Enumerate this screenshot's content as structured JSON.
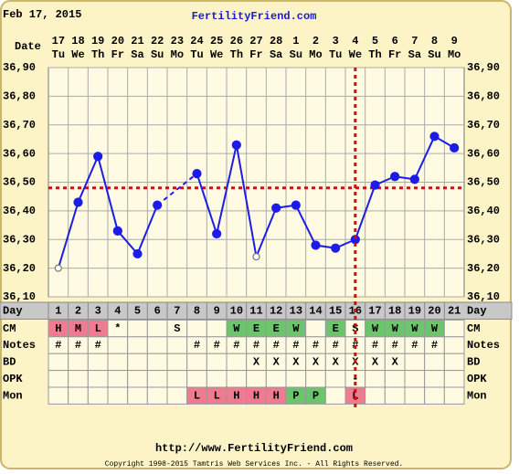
{
  "header": {
    "date": "Feb 17, 2015",
    "site": "FertilityFriend.com"
  },
  "chart_data": {
    "type": "line",
    "date_label": "Date",
    "dates": [
      17,
      18,
      19,
      20,
      21,
      22,
      23,
      24,
      25,
      26,
      27,
      28,
      1,
      2,
      3,
      4,
      5,
      6,
      7,
      8,
      9
    ],
    "weekdays": [
      "Tu",
      "We",
      "Th",
      "Fr",
      "Sa",
      "Su",
      "Mo",
      "Tu",
      "We",
      "Th",
      "Fr",
      "Sa",
      "Su",
      "Mo",
      "Tu",
      "We",
      "Th",
      "Fr",
      "Sa",
      "Su",
      "Mo"
    ],
    "day_label": "Day",
    "days": [
      1,
      2,
      3,
      4,
      5,
      6,
      7,
      8,
      9,
      10,
      11,
      12,
      13,
      14,
      15,
      16,
      17,
      18,
      19,
      20,
      21
    ],
    "values": [
      36.2,
      36.43,
      36.59,
      36.33,
      36.25,
      36.42,
      null,
      36.53,
      36.32,
      36.63,
      36.24,
      36.41,
      36.42,
      36.28,
      36.27,
      36.3,
      36.49,
      36.52,
      36.51,
      36.66,
      36.62
    ],
    "markers": [
      "open",
      "filled",
      "filled",
      "filled",
      "filled",
      "filled",
      null,
      "filled",
      "filled",
      "filled",
      "open",
      "filled",
      "filled",
      "filled",
      "filled",
      "filled",
      "filled",
      "filled",
      "filled",
      "filled",
      "filled"
    ],
    "color": "#1c1ce8",
    "ylim": [
      36.1,
      36.9
    ],
    "yticks": [
      {
        "value": 36.1,
        "label": "36,10"
      },
      {
        "value": 36.2,
        "label": "36,20"
      },
      {
        "value": 36.3,
        "label": "36,30"
      },
      {
        "value": 36.4,
        "label": "36,40"
      },
      {
        "value": 36.5,
        "label": "36,50"
      },
      {
        "value": 36.6,
        "label": "36,60"
      },
      {
        "value": 36.7,
        "label": "36,70"
      },
      {
        "value": 36.8,
        "label": "36,80"
      },
      {
        "value": 36.9,
        "label": "36,90"
      }
    ],
    "grid": true,
    "coverline": {
      "value": 36.48,
      "color": "#cc1010"
    },
    "ovulation_day": 16,
    "rows": [
      {
        "label": "CM",
        "cells": [
          "H",
          "M",
          "L",
          "*",
          null,
          null,
          "S",
          null,
          null,
          "W",
          "E",
          "E",
          "W",
          null,
          "E",
          "S",
          "W",
          "W",
          "W",
          "W",
          null
        ]
      },
      {
        "label": "Notes",
        "cells": [
          "#",
          "#",
          "#",
          null,
          null,
          null,
          null,
          "#",
          "#",
          "#",
          "#",
          "#",
          "#",
          "#",
          "#",
          "#",
          "#",
          "#",
          "#",
          "#",
          null
        ]
      },
      {
        "label": "BD",
        "cells": [
          null,
          null,
          null,
          null,
          null,
          null,
          null,
          null,
          null,
          null,
          "X",
          "X",
          "X",
          "X",
          "X",
          "X",
          "X",
          "X",
          null,
          null,
          null
        ]
      },
      {
        "label": "OPK",
        "cells": [
          null,
          null,
          null,
          null,
          null,
          null,
          null,
          null,
          null,
          null,
          null,
          null,
          null,
          null,
          null,
          "-",
          null,
          null,
          null,
          null,
          null
        ]
      },
      {
        "label": "Mon",
        "cells": [
          null,
          null,
          null,
          null,
          null,
          null,
          null,
          "L",
          "L",
          "H",
          "H",
          "H",
          "P",
          "P",
          null,
          "L",
          null,
          null,
          null,
          null,
          null
        ]
      }
    ],
    "cell_colors": {
      "H": "#f07a90",
      "M": "#f07a90",
      "L": "#f07a90",
      "W": "#6cc46c",
      "E": "#6cc46c",
      "P": "#6cc46c"
    }
  },
  "footer": {
    "url": "http://www.FertilityFriend.com",
    "copyright": "Copyright 1998-2015 Tamtris Web Services Inc. - All Rights Reserved."
  }
}
